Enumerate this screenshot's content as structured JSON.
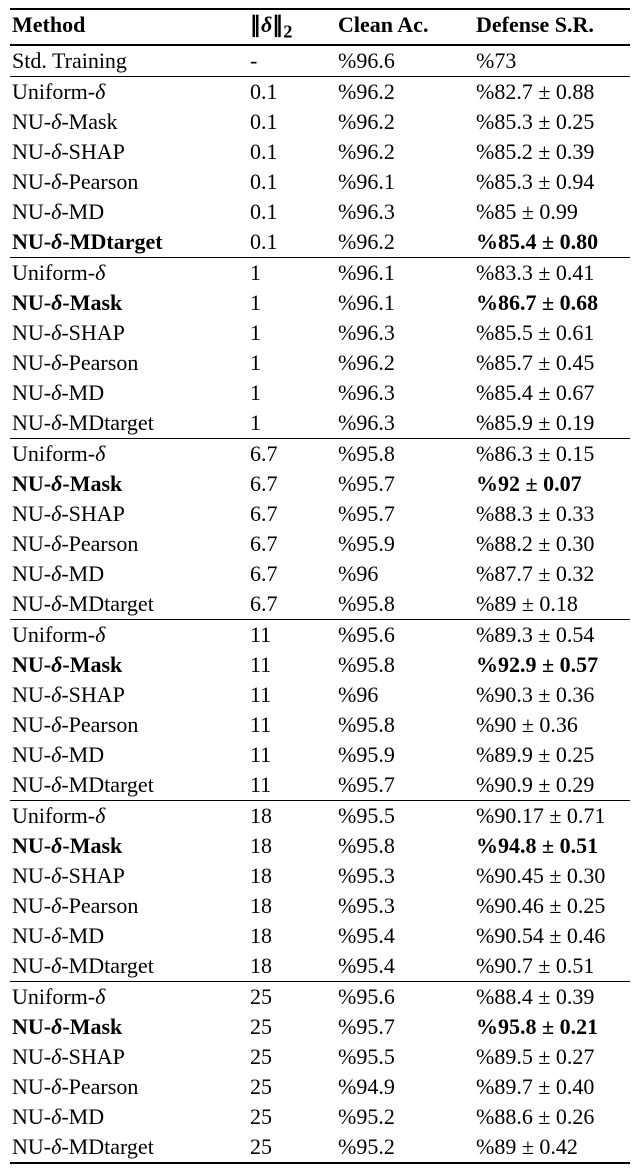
{
  "header": {
    "method": "Method",
    "delta_html": "∥<span class='math'>δ</span>∥<sub>2</sub>",
    "clean": "Clean Ac.",
    "defense": "Defense S.R."
  },
  "methods": {
    "std": "Std. Training",
    "uniform": "Uniform-<span class='math'>δ</span>",
    "mask": "NU-<span class='math'>δ</span>-Mask",
    "shap": "NU-<span class='math'>δ</span>-SHAP",
    "pearson": "NU-<span class='math'>δ</span>-Pearson",
    "md": "NU-<span class='math'>δ</span>-MD",
    "mdtarget": "NU-<span class='math'>δ</span>-MDtarget",
    "mask_b": "<b>NU-<span class='math' style='font-weight:bold;'>δ</span>-Mask</b>",
    "mdtarget_b": "<b>NU-<span class='math' style='font-weight:bold;'>δ</span>-MDtarget</b>"
  },
  "groups": [
    {
      "top": "thick",
      "rows": [
        {
          "m": "std",
          "d": "-",
          "c": "%96.6",
          "s": "%73"
        }
      ]
    },
    {
      "top": "thin",
      "rows": [
        {
          "m": "uniform",
          "d": "0.1",
          "c": "%96.2",
          "s": "%82.7 ± 0.88"
        },
        {
          "m": "mask",
          "d": "0.1",
          "c": "%96.2",
          "s": "%85.3 ± 0.25"
        },
        {
          "m": "shap",
          "d": "0.1",
          "c": "%96.2",
          "s": "%85.2 ± 0.39"
        },
        {
          "m": "pearson",
          "d": "0.1",
          "c": "%96.1",
          "s": "%85.3 ± 0.94"
        },
        {
          "m": "md",
          "d": "0.1",
          "c": "%96.3",
          "s": "%85 ± 0.99"
        },
        {
          "m": "mdtarget_b",
          "d": "0.1",
          "c": "%96.2",
          "s": "<b>%85.4 ± 0.80</b>"
        }
      ]
    },
    {
      "top": "thin",
      "rows": [
        {
          "m": "uniform",
          "d": "1",
          "c": "%96.1",
          "s": "%83.3 ± 0.41"
        },
        {
          "m": "mask_b",
          "d": "1",
          "c": "%96.1",
          "s": "<b>%86.7 ± 0.68</b>"
        },
        {
          "m": "shap",
          "d": "1",
          "c": "%96.3",
          "s": "%85.5 ± 0.61"
        },
        {
          "m": "pearson",
          "d": "1",
          "c": "%96.2",
          "s": "%85.7 ± 0.45"
        },
        {
          "m": "md",
          "d": "1",
          "c": "%96.3",
          "s": "%85.4 ± 0.67"
        },
        {
          "m": "mdtarget",
          "d": "1",
          "c": "%96.3",
          "s": "%85.9 ± 0.19"
        }
      ]
    },
    {
      "top": "thin",
      "rows": [
        {
          "m": "uniform",
          "d": "6.7",
          "c": "%95.8",
          "s": "%86.3 ± 0.15"
        },
        {
          "m": "mask_b",
          "d": "6.7",
          "c": "%95.7",
          "s": "<b>%92 ± 0.07</b>"
        },
        {
          "m": "shap",
          "d": "6.7",
          "c": "%95.7",
          "s": "%88.3 ± 0.33"
        },
        {
          "m": "pearson",
          "d": "6.7",
          "c": "%95.9",
          "s": "%88.2 ± 0.30"
        },
        {
          "m": "md",
          "d": "6.7",
          "c": "%96",
          "s": "%87.7 ± 0.32"
        },
        {
          "m": "mdtarget",
          "d": "6.7",
          "c": "%95.8",
          "s": "%89 ± 0.18"
        }
      ]
    },
    {
      "top": "thin",
      "rows": [
        {
          "m": "uniform",
          "d": "11",
          "c": "%95.6",
          "s": "%89.3 ± 0.54"
        },
        {
          "m": "mask_b",
          "d": "11",
          "c": "%95.8",
          "s": "<b>%92.9 ± 0.57</b>"
        },
        {
          "m": "shap",
          "d": "11",
          "c": "%96",
          "s": "%90.3 ± 0.36"
        },
        {
          "m": "pearson",
          "d": "11",
          "c": "%95.8",
          "s": "%90 ± 0.36"
        },
        {
          "m": "md",
          "d": "11",
          "c": "%95.9",
          "s": "%89.9 ± 0.25"
        },
        {
          "m": "mdtarget",
          "d": "11",
          "c": "%95.7",
          "s": "%90.9 ± 0.29"
        }
      ]
    },
    {
      "top": "thin",
      "rows": [
        {
          "m": "uniform",
          "d": "18",
          "c": "%95.5",
          "s": "%90.17 ± 0.71"
        },
        {
          "m": "mask_b",
          "d": "18",
          "c": "%95.8",
          "s": "<b>%94.8 ± 0.51</b>"
        },
        {
          "m": "shap",
          "d": "18",
          "c": "%95.3",
          "s": "%90.45 ± 0.30"
        },
        {
          "m": "pearson",
          "d": "18",
          "c": "%95.3",
          "s": "%90.46 ± 0.25"
        },
        {
          "m": "md",
          "d": "18",
          "c": "%95.4",
          "s": "%90.54 ± 0.46"
        },
        {
          "m": "mdtarget",
          "d": "18",
          "c": "%95.4",
          "s": "%90.7 ± 0.51"
        }
      ]
    },
    {
      "top": "thin",
      "rows": [
        {
          "m": "uniform",
          "d": "25",
          "c": "%95.6",
          "s": "%88.4 ± 0.39"
        },
        {
          "m": "mask_b",
          "d": "25",
          "c": "%95.7",
          "s": "<b>%95.8 ± 0.21</b>"
        },
        {
          "m": "shap",
          "d": "25",
          "c": "%95.5",
          "s": "%89.5 ± 0.27"
        },
        {
          "m": "pearson",
          "d": "25",
          "c": "%94.9",
          "s": "%89.7 ± 0.40"
        },
        {
          "m": "md",
          "d": "25",
          "c": "%95.2",
          "s": "%88.6 ± 0.26"
        },
        {
          "m": "mdtarget",
          "d": "25",
          "c": "%95.2",
          "s": "%89 ± 0.42"
        }
      ]
    }
  ]
}
